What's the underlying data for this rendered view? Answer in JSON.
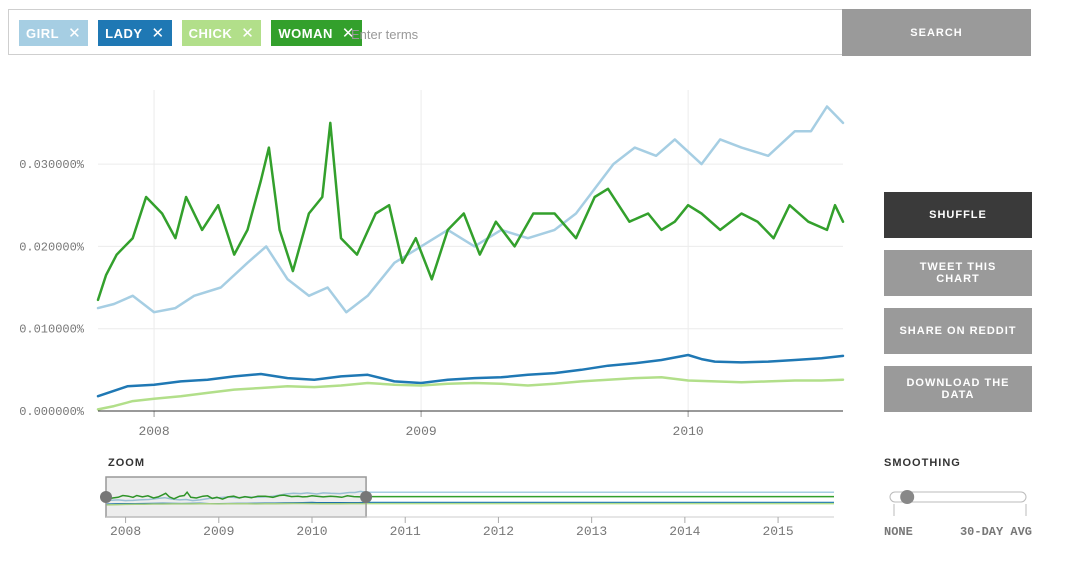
{
  "search": {
    "tags": [
      {
        "label": "GIRL",
        "color": "#a6cee3"
      },
      {
        "label": "LADY",
        "color": "#1f78b4"
      },
      {
        "label": "CHICK",
        "color": "#b2df8a"
      },
      {
        "label": "WOMAN",
        "color": "#33a02c"
      }
    ],
    "remove_glyph": "✕",
    "placeholder": "Enter terms",
    "button_label": "SEARCH"
  },
  "buttons": {
    "shuffle": "SHUFFLE",
    "tweet": "TWEET THIS CHART",
    "reddit": "SHARE ON REDDIT",
    "download": "DOWNLOAD THE DATA"
  },
  "zoom": {
    "label": "ZOOM",
    "years": [
      "2008",
      "2009",
      "2010",
      "2011",
      "2012",
      "2013",
      "2014",
      "2015"
    ],
    "selection": [
      2007.79,
      2010.58
    ],
    "range": [
      2007.79,
      2015.6
    ]
  },
  "smoothing": {
    "label": "SMOOTHING",
    "min_label": "NONE",
    "max_label": "30-DAY AVG",
    "value": 0.1
  },
  "chart_data": {
    "type": "line",
    "title": "",
    "xlabel": "",
    "ylabel": "",
    "xlim": [
      2007.79,
      2010.58
    ],
    "ylim": [
      0,
      0.039
    ],
    "yticks": [
      0.0,
      0.01,
      0.02,
      0.03
    ],
    "ytick_labels": [
      "0.000000%",
      "0.010000%",
      "0.020000%",
      "0.030000%"
    ],
    "xticks": [
      2008,
      2009,
      2010
    ],
    "xtick_labels": [
      "2008",
      "2009",
      "2010"
    ],
    "grid": true,
    "series": [
      {
        "name": "girl",
        "color": "#a6cee3",
        "x": [
          2007.79,
          2007.85,
          2007.92,
          2008.0,
          2008.08,
          2008.15,
          2008.25,
          2008.35,
          2008.42,
          2008.5,
          2008.58,
          2008.65,
          2008.72,
          2008.8,
          2008.9,
          2009.0,
          2009.1,
          2009.2,
          2009.3,
          2009.4,
          2009.5,
          2009.58,
          2009.65,
          2009.72,
          2009.8,
          2009.88,
          2009.95,
          2010.05,
          2010.12,
          2010.2,
          2010.3,
          2010.4,
          2010.46,
          2010.52,
          2010.58
        ],
        "values": [
          0.0125,
          0.013,
          0.014,
          0.012,
          0.0125,
          0.014,
          0.015,
          0.018,
          0.02,
          0.016,
          0.014,
          0.015,
          0.012,
          0.014,
          0.018,
          0.02,
          0.022,
          0.02,
          0.022,
          0.021,
          0.022,
          0.024,
          0.027,
          0.03,
          0.032,
          0.031,
          0.033,
          0.03,
          0.033,
          0.032,
          0.031,
          0.034,
          0.034,
          0.037,
          0.035
        ]
      },
      {
        "name": "lady",
        "color": "#1f78b4",
        "x": [
          2007.79,
          2007.9,
          2008.0,
          2008.1,
          2008.2,
          2008.3,
          2008.4,
          2008.5,
          2008.6,
          2008.7,
          2008.8,
          2008.9,
          2009.0,
          2009.1,
          2009.2,
          2009.3,
          2009.4,
          2009.5,
          2009.6,
          2009.7,
          2009.8,
          2009.9,
          2010.0,
          2010.05,
          2010.1,
          2010.2,
          2010.3,
          2010.4,
          2010.5,
          2010.58
        ],
        "values": [
          0.0018,
          0.003,
          0.0032,
          0.0036,
          0.0038,
          0.0042,
          0.0045,
          0.004,
          0.0038,
          0.0042,
          0.0044,
          0.0036,
          0.0034,
          0.0038,
          0.004,
          0.0041,
          0.0044,
          0.0046,
          0.005,
          0.0055,
          0.0058,
          0.0062,
          0.0068,
          0.0063,
          0.006,
          0.0059,
          0.006,
          0.0062,
          0.0064,
          0.0067
        ]
      },
      {
        "name": "chick",
        "color": "#b2df8a",
        "x": [
          2007.79,
          2007.85,
          2007.92,
          2008.0,
          2008.1,
          2008.2,
          2008.3,
          2008.4,
          2008.5,
          2008.6,
          2008.7,
          2008.8,
          2008.9,
          2009.0,
          2009.1,
          2009.2,
          2009.3,
          2009.4,
          2009.5,
          2009.6,
          2009.7,
          2009.8,
          2009.9,
          2010.0,
          2010.1,
          2010.2,
          2010.3,
          2010.4,
          2010.5,
          2010.58
        ],
        "values": [
          0.0002,
          0.0006,
          0.0012,
          0.0015,
          0.0018,
          0.0022,
          0.0026,
          0.0028,
          0.003,
          0.0029,
          0.0031,
          0.0034,
          0.0032,
          0.0031,
          0.0033,
          0.0034,
          0.0033,
          0.0031,
          0.0033,
          0.0036,
          0.0038,
          0.004,
          0.0041,
          0.0037,
          0.0036,
          0.0035,
          0.0036,
          0.0037,
          0.0037,
          0.0038
        ]
      },
      {
        "name": "woman",
        "color": "#33a02c",
        "x": [
          2007.79,
          2007.82,
          2007.86,
          2007.92,
          2007.97,
          2008.03,
          2008.08,
          2008.12,
          2008.18,
          2008.24,
          2008.3,
          2008.35,
          2008.4,
          2008.43,
          2008.47,
          2008.52,
          2008.58,
          2008.63,
          2008.66,
          2008.7,
          2008.76,
          2008.83,
          2008.88,
          2008.93,
          2008.98,
          2009.04,
          2009.1,
          2009.16,
          2009.22,
          2009.28,
          2009.35,
          2009.42,
          2009.5,
          2009.58,
          2009.65,
          2009.7,
          2009.78,
          2009.85,
          2009.9,
          2009.95,
          2010.0,
          2010.05,
          2010.12,
          2010.2,
          2010.26,
          2010.32,
          2010.38,
          2010.45,
          2010.52,
          2010.55,
          2010.58
        ],
        "values": [
          0.0135,
          0.0165,
          0.019,
          0.021,
          0.026,
          0.024,
          0.021,
          0.026,
          0.022,
          0.025,
          0.019,
          0.022,
          0.028,
          0.032,
          0.022,
          0.017,
          0.024,
          0.026,
          0.035,
          0.021,
          0.019,
          0.024,
          0.025,
          0.018,
          0.021,
          0.016,
          0.022,
          0.024,
          0.019,
          0.023,
          0.02,
          0.024,
          0.024,
          0.021,
          0.026,
          0.027,
          0.023,
          0.024,
          0.022,
          0.023,
          0.025,
          0.024,
          0.022,
          0.024,
          0.023,
          0.021,
          0.025,
          0.023,
          0.022,
          0.025,
          0.023
        ]
      }
    ]
  }
}
